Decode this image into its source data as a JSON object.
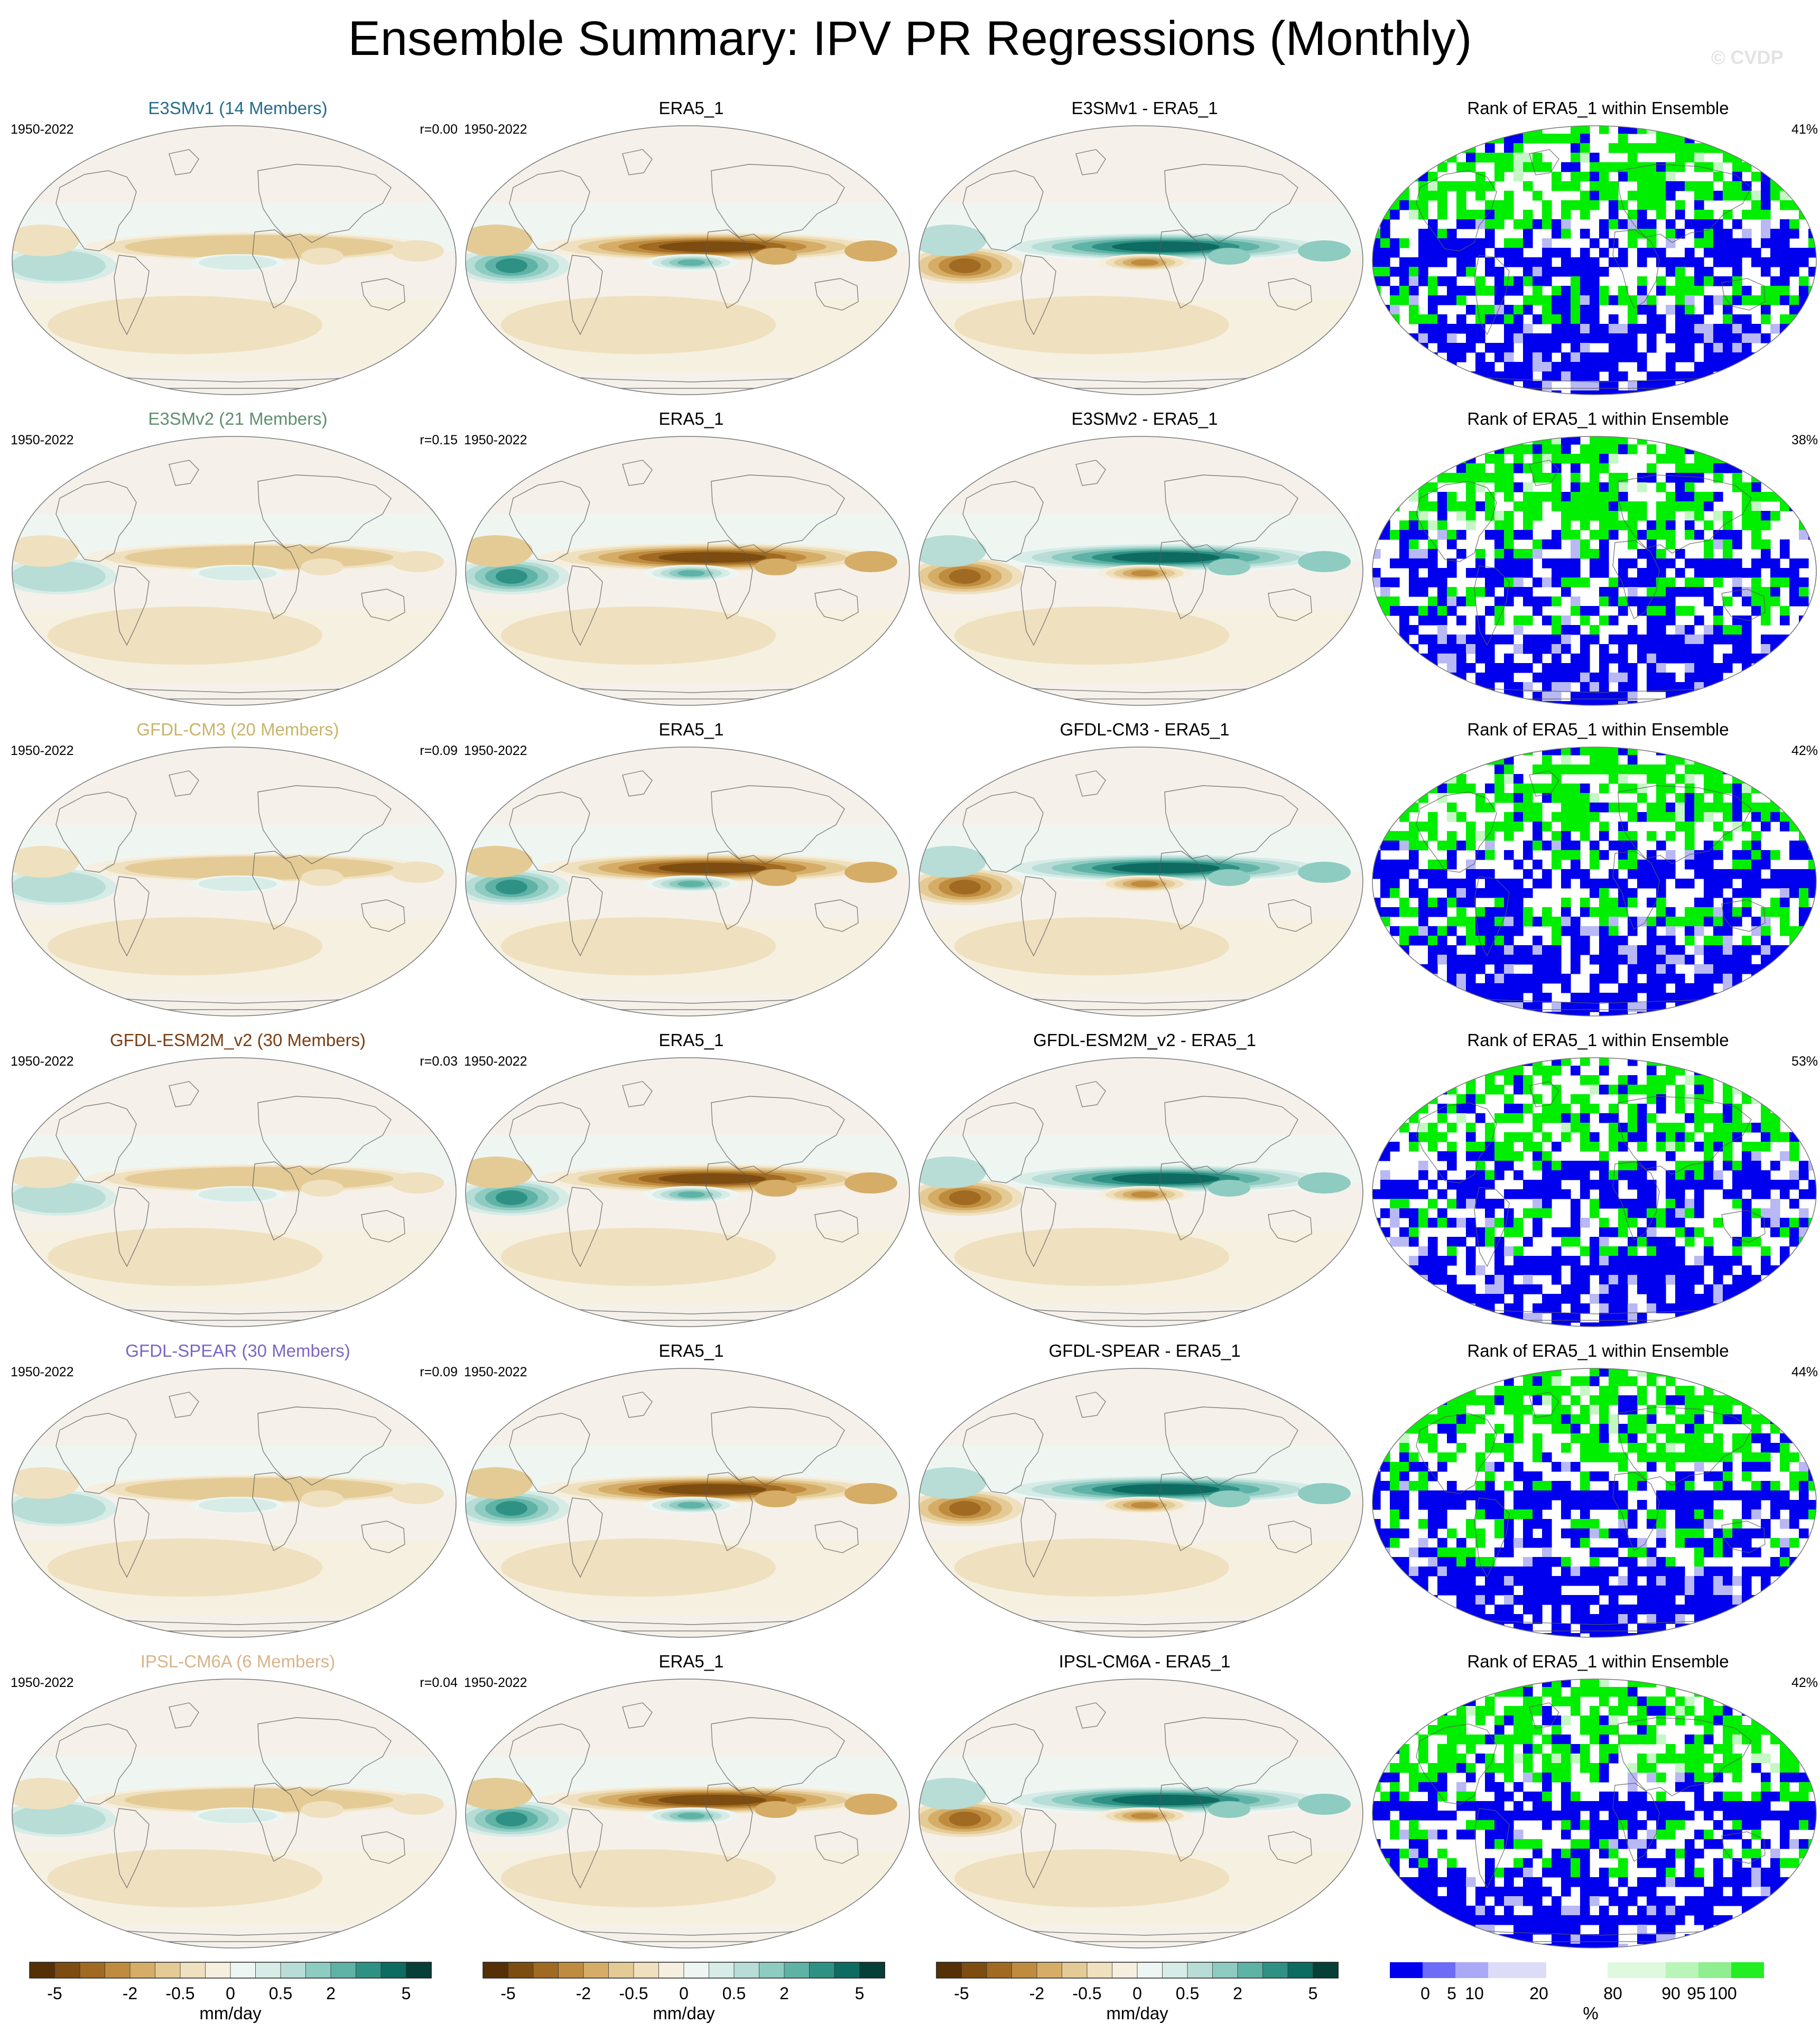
{
  "figure": {
    "title": "Ensemble Summary: IPV PR Regressions (Monthly)",
    "watermark": "© CVDP"
  },
  "colors": {
    "ocean_bg": "#f5f1ea",
    "pos_scale": [
      "#eef6f3",
      "#d7ece7",
      "#b7ddd6",
      "#8ecbc0",
      "#5fb2a6",
      "#2e9184",
      "#0d6b62",
      "#053f37"
    ],
    "neg_scale": [
      "#f6efdf",
      "#efe0bf",
      "#e4cb95",
      "#d5ad67",
      "#bf8c3f",
      "#a06a22",
      "#7d4c10",
      "#553006"
    ],
    "rank_blue": "#0000ee",
    "rank_green": "#00ee00",
    "rank_lightblue": "#b8b8f4",
    "rank_lightgreen": "#c4f7c4"
  },
  "chart_data": [
    {
      "type": "heatmap",
      "projection": "global map (Robinson-like), contour-filled precipitation regression on IPV index",
      "columns": [
        "model ensemble mean",
        "observations",
        "model - observations",
        "rank of observations within ensemble"
      ],
      "rows": [
        {
          "model": "E3SMv1 (14 Members)",
          "model_color": "#256b8c",
          "years": "1950-2022",
          "r": "r=0.00",
          "obs": "ERA5_1",
          "diff": "E3SMv1 - ERA5_1",
          "rank_title": "Rank of ERA5_1 within Ensemble",
          "rank_pct": "41%"
        },
        {
          "model": "E3SMv2 (21 Members)",
          "model_color": "#5f8f6f",
          "years": "1950-2022",
          "r": "r=0.15",
          "obs": "ERA5_1",
          "diff": "E3SMv2 - ERA5_1",
          "rank_title": "Rank of ERA5_1 within Ensemble",
          "rank_pct": "38%"
        },
        {
          "model": "GFDL-CM3 (20 Members)",
          "model_color": "#c9b46a",
          "years": "1950-2022",
          "r": "r=0.09",
          "obs": "ERA5_1",
          "diff": "GFDL-CM3 - ERA5_1",
          "rank_title": "Rank of ERA5_1 within Ensemble",
          "rank_pct": "42%"
        },
        {
          "model": "GFDL-ESM2M_v2 (30 Members)",
          "model_color": "#7a3d12",
          "years": "1950-2022",
          "r": "r=0.03",
          "obs": "ERA5_1",
          "diff": "GFDL-ESM2M_v2 - ERA5_1",
          "rank_title": "Rank of ERA5_1 within Ensemble",
          "rank_pct": "53%"
        },
        {
          "model": "GFDL-SPEAR (30 Members)",
          "model_color": "#7d66c4",
          "years": "1950-2022",
          "r": "r=0.09",
          "obs": "ERA5_1",
          "diff": "GFDL-SPEAR - ERA5_1",
          "rank_title": "Rank of ERA5_1 within Ensemble",
          "rank_pct": "44%"
        },
        {
          "model": "IPSL-CM6A (6 Members)",
          "model_color": "#d8b48a",
          "years": "1950-2022",
          "r": "r=0.04",
          "obs": "ERA5_1",
          "diff": "IPSL-CM6A - ERA5_1",
          "rank_title": "Rank of ERA5_1 within Ensemble",
          "rank_pct": "42%"
        }
      ],
      "colorbar_pr": {
        "ticks": [
          "-5",
          "-2",
          "-0.5",
          "0",
          "0.5",
          "2",
          "5"
        ],
        "units": "mm/day",
        "n_bins": 16
      },
      "colorbar_rank": {
        "ticks": [
          "0",
          "5",
          "10",
          "20",
          "80",
          "90",
          "95",
          "100"
        ],
        "units": "%"
      }
    }
  ]
}
